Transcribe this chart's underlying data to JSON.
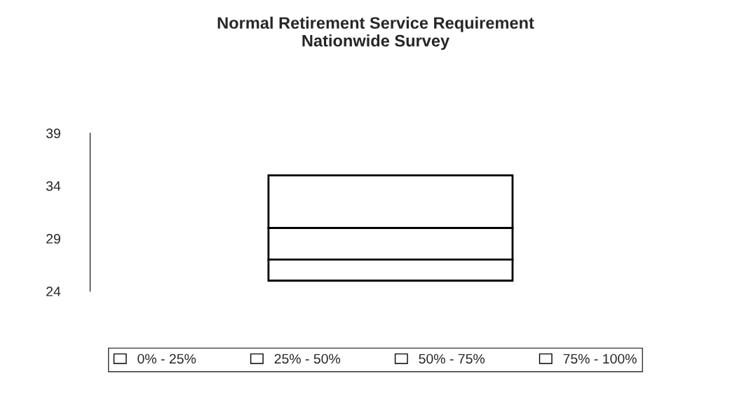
{
  "chart_data": {
    "type": "bar",
    "title": "Normal Retirement Service Requirement\nNationwide Survey",
    "categories": [
      null
    ],
    "series": [
      {
        "name": "0% - 25%",
        "color": "#ffffff",
        "values": [
          null
        ]
      },
      {
        "name": "25% - 50%",
        "color": "#ffffff",
        "values": [
          2
        ],
        "base": [
          25
        ]
      },
      {
        "name": "50% - 75%",
        "color": "#ffffff",
        "values": [
          3
        ],
        "base": [
          27
        ]
      },
      {
        "name": "75% - 100%",
        "color": "#ffffff",
        "values": [
          5
        ],
        "base": [
          30
        ]
      }
    ],
    "ylim": [
      24,
      39
    ],
    "yticks": [
      24,
      29,
      34,
      39
    ],
    "legend": "bottom"
  }
}
